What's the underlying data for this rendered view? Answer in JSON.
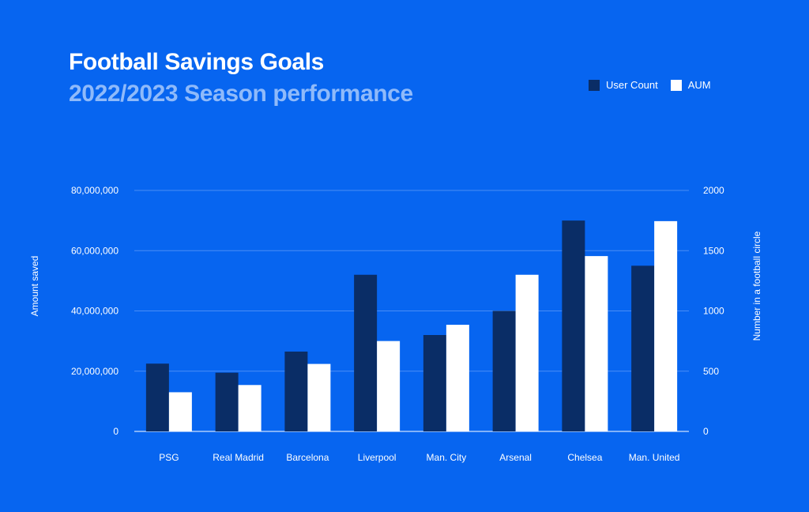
{
  "chart_data": {
    "type": "bar",
    "title": "Football Savings Goals",
    "subtitle": "2022/2023 Season performance",
    "categories": [
      "PSG",
      "Real Madrid",
      "Barcelona",
      "Liverpool",
      "Man. City",
      "Arsenal",
      "Chelsea",
      "Man. United"
    ],
    "series": [
      {
        "name": "User Count",
        "axis": "left",
        "color": "#0a2d66",
        "values": [
          22500000,
          19500000,
          26500000,
          52000000,
          32000000,
          40000000,
          70000000,
          55000000
        ]
      },
      {
        "name": "AUM",
        "axis": "right",
        "color": "#ffffff",
        "values": [
          325,
          385,
          560,
          750,
          885,
          1300,
          1455,
          1745
        ]
      }
    ],
    "ylabel": "Amount saved",
    "y2label": "Number in a football circle",
    "ylim": [
      0,
      80000000
    ],
    "y2lim": [
      0,
      2000
    ],
    "yticks": [
      "0",
      "20,000,000",
      "40,000,000",
      "60,000,000",
      "80,000,000"
    ],
    "y2ticks": [
      "0",
      "500",
      "1000",
      "1500",
      "2000"
    ],
    "grid": true,
    "legend_position": "top-right"
  },
  "colors": {
    "background": "#0765f0",
    "subtitle": "#8fbafa",
    "gridline": "#4a8df5"
  }
}
